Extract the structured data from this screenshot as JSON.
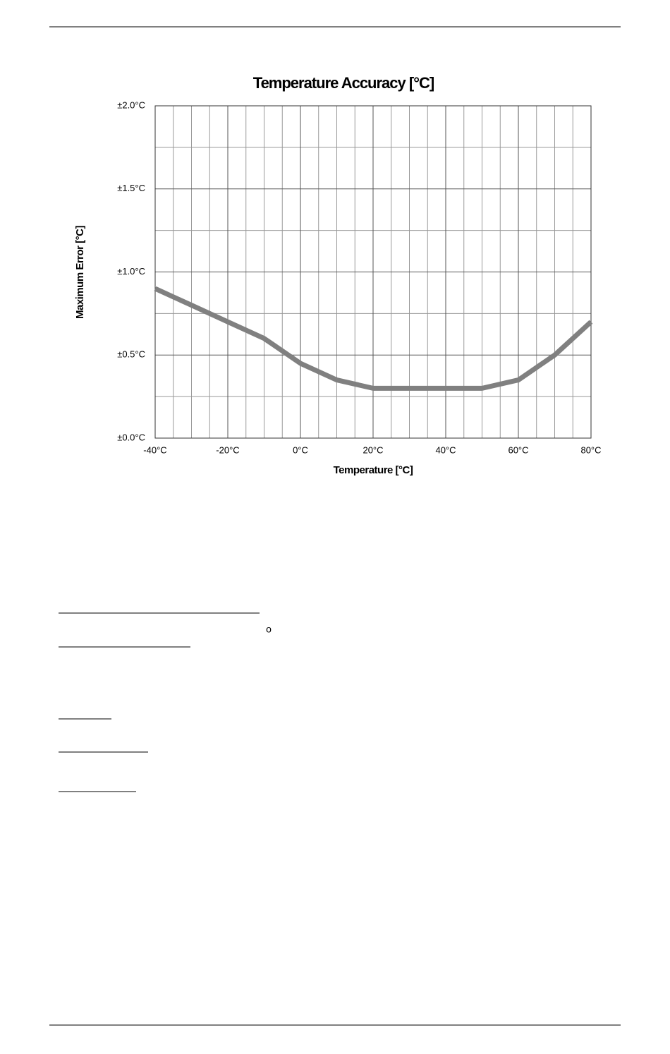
{
  "chart_data": {
    "type": "line",
    "title": "Temperature Accuracy [°C]",
    "x_label": "Temperature [°C]",
    "y_label": "Maximum Error [°C]",
    "x": [
      -40,
      -30,
      -20,
      -10,
      0,
      10,
      20,
      30,
      40,
      50,
      60,
      70,
      80
    ],
    "series": [
      {
        "name": "Maximum Error",
        "color": "#808080",
        "values": [
          0.9,
          0.8,
          0.7,
          0.6,
          0.45,
          0.35,
          0.3,
          0.3,
          0.3,
          0.3,
          0.35,
          0.5,
          0.7
        ]
      }
    ],
    "xlim": [
      -40,
      80
    ],
    "xticks": [
      {
        "value": -40,
        "label": "-40°C"
      },
      {
        "value": -20,
        "label": "-20°C"
      },
      {
        "value": 0,
        "label": "0°C"
      },
      {
        "value": 20,
        "label": "20°C"
      },
      {
        "value": 40,
        "label": "40°C"
      },
      {
        "value": 60,
        "label": "60°C"
      },
      {
        "value": 80,
        "label": "80°C"
      }
    ],
    "ylim": [
      0,
      2
    ],
    "yticks": [
      {
        "value": 0,
        "label": "±0.0°C"
      },
      {
        "value": 0.5,
        "label": "±0.5°C"
      },
      {
        "value": 1,
        "label": "±1.0°C"
      },
      {
        "value": 1.5,
        "label": "±1.5°C"
      },
      {
        "value": 2,
        "label": "±2.0°C"
      }
    ],
    "grid": true
  },
  "body": {
    "fragment": "o"
  }
}
